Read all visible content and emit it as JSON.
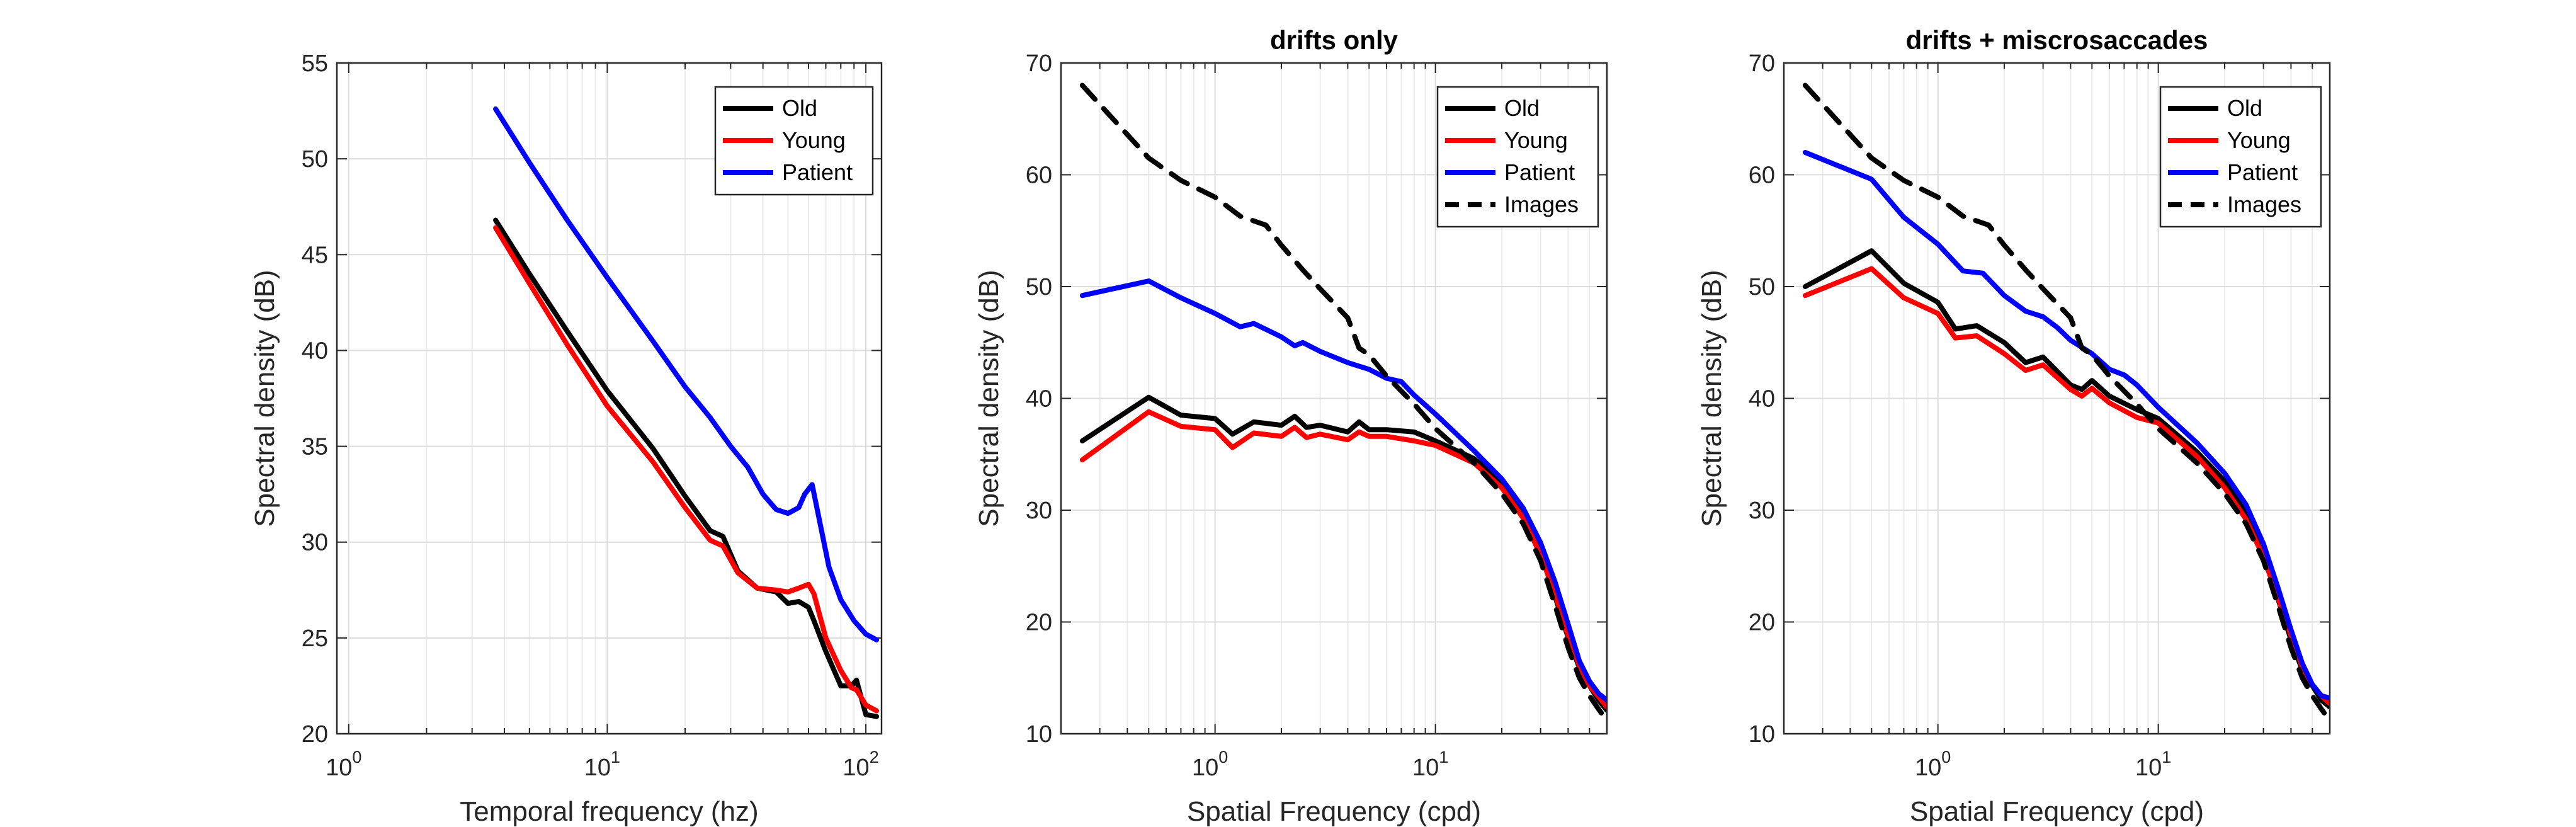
{
  "chart_data": [
    {
      "type": "line",
      "title": "",
      "xlabel": "Temporal frequency (hz)",
      "ylabel": "Spectral density (dB)",
      "xscale": "log",
      "xlim": [
        0.9,
        115
      ],
      "ylim": [
        20,
        55
      ],
      "yticks": [
        20,
        25,
        30,
        35,
        40,
        45,
        50,
        55
      ],
      "xticks": [
        {
          "value": 1,
          "base": "10",
          "exp": "0"
        },
        {
          "value": 10,
          "base": "10",
          "exp": "1"
        },
        {
          "value": 100,
          "base": "10",
          "exp": "2"
        }
      ],
      "grid": true,
      "legend_position": "top-right",
      "series": [
        {
          "name": "Old",
          "color": "#000000",
          "dash": false,
          "x": [
            3.7,
            5,
            7,
            10,
            15,
            20,
            25,
            28,
            32,
            38,
            45,
            50,
            55,
            60,
            63,
            70,
            80,
            88,
            92,
            100,
            110
          ],
          "y": [
            46.8,
            44.0,
            41.0,
            37.9,
            34.9,
            32.4,
            30.6,
            30.3,
            28.5,
            27.6,
            27.4,
            26.8,
            26.9,
            26.6,
            25.9,
            24.3,
            22.5,
            22.5,
            22.8,
            21.0,
            20.9
          ]
        },
        {
          "name": "Young",
          "color": "#ff0000",
          "dash": false,
          "x": [
            3.7,
            5,
            7,
            10,
            15,
            20,
            25,
            28,
            32,
            38,
            45,
            50,
            55,
            60,
            63,
            70,
            80,
            88,
            92,
            100,
            110
          ],
          "y": [
            46.4,
            43.5,
            40.3,
            37.1,
            34.2,
            31.8,
            30.1,
            29.8,
            28.4,
            27.6,
            27.5,
            27.4,
            27.6,
            27.8,
            27.3,
            25.0,
            23.3,
            22.4,
            22.3,
            21.5,
            21.2
          ]
        },
        {
          "name": "Patient",
          "color": "#0000ff",
          "dash": false,
          "x": [
            3.7,
            5,
            7,
            10,
            15,
            20,
            25,
            30,
            35,
            40,
            45,
            50,
            55,
            58,
            62,
            66,
            72,
            80,
            90,
            100,
            110
          ],
          "y": [
            52.6,
            49.8,
            46.8,
            43.8,
            40.5,
            38.1,
            36.5,
            35.0,
            33.9,
            32.5,
            31.7,
            31.5,
            31.8,
            32.5,
            33.0,
            31.2,
            28.7,
            27.0,
            25.9,
            25.2,
            24.9
          ]
        }
      ]
    },
    {
      "type": "line",
      "title": "drifts only",
      "xlabel": "Spatial Frequency (cpd)",
      "ylabel": "Spectral density (dB)",
      "xscale": "log",
      "xlim": [
        0.2,
        60
      ],
      "ylim": [
        10,
        70
      ],
      "yticks": [
        10,
        20,
        30,
        40,
        50,
        60,
        70
      ],
      "xticks": [
        {
          "value": 1,
          "base": "10",
          "exp": "0"
        },
        {
          "value": 10,
          "base": "10",
          "exp": "1"
        }
      ],
      "grid": true,
      "legend_position": "top-right",
      "series": [
        {
          "name": "Old",
          "color": "#000000",
          "dash": false,
          "x": [
            0.25,
            0.5,
            0.7,
            1.0,
            1.2,
            1.5,
            2.0,
            2.3,
            2.6,
            3.0,
            4.0,
            4.5,
            5.0,
            6.0,
            8.0,
            10,
            15,
            20,
            25,
            30,
            35,
            40,
            45,
            50,
            55,
            60
          ],
          "y": [
            36.2,
            40.1,
            38.5,
            38.2,
            36.8,
            37.9,
            37.6,
            38.4,
            37.4,
            37.6,
            37.0,
            37.9,
            37.2,
            37.2,
            37.0,
            36.2,
            34.6,
            32.5,
            29.8,
            26.3,
            22.2,
            18.6,
            15.9,
            14.3,
            13.0,
            12.1
          ]
        },
        {
          "name": "Young",
          "color": "#ff0000",
          "dash": false,
          "x": [
            0.25,
            0.5,
            0.7,
            1.0,
            1.2,
            1.5,
            2.0,
            2.3,
            2.6,
            3.0,
            4.0,
            4.5,
            5.0,
            6.0,
            8.0,
            10,
            15,
            20,
            25,
            30,
            35,
            40,
            45,
            50,
            55,
            60
          ],
          "y": [
            34.5,
            38.8,
            37.5,
            37.2,
            35.6,
            36.9,
            36.6,
            37.4,
            36.5,
            36.8,
            36.3,
            37.0,
            36.6,
            36.6,
            36.2,
            35.8,
            34.2,
            32.0,
            29.3,
            26.0,
            22.4,
            18.8,
            16.1,
            14.3,
            13.3,
            12.4
          ]
        },
        {
          "name": "Patient",
          "color": "#0000ff",
          "dash": false,
          "x": [
            0.25,
            0.5,
            0.7,
            1.0,
            1.3,
            1.5,
            2.0,
            2.3,
            2.5,
            3.0,
            4.0,
            5.0,
            6.0,
            7.0,
            8.0,
            10,
            15,
            20,
            25,
            30,
            35,
            40,
            45,
            50,
            55,
            60
          ],
          "y": [
            49.2,
            50.5,
            49.0,
            47.6,
            46.4,
            46.7,
            45.5,
            44.7,
            45.0,
            44.2,
            43.2,
            42.6,
            41.8,
            41.5,
            40.3,
            38.6,
            35.3,
            32.8,
            30.2,
            27.1,
            23.5,
            19.8,
            16.5,
            14.7,
            13.6,
            13.0
          ]
        },
        {
          "name": "Images",
          "color": "#000000",
          "dash": true,
          "x": [
            0.25,
            0.5,
            0.7,
            1.0,
            1.3,
            1.7,
            2.0,
            2.5,
            3.0,
            4.0,
            4.5,
            5.0,
            6.0,
            8.0,
            10,
            15,
            20,
            25,
            30,
            35,
            40,
            45,
            50,
            55,
            60
          ],
          "y": [
            68.0,
            61.5,
            59.5,
            58.0,
            56.3,
            55.5,
            53.7,
            51.5,
            49.8,
            47.2,
            44.5,
            43.9,
            42.0,
            39.5,
            37.3,
            34.2,
            31.5,
            28.8,
            25.5,
            21.4,
            17.7,
            15.0,
            13.4,
            12.2,
            11.2
          ]
        }
      ]
    },
    {
      "type": "line",
      "title": "drifts + miscrosaccades",
      "xlabel": "Spatial Frequency (cpd)",
      "ylabel": "Spectral density (dB)",
      "xscale": "log",
      "xlim": [
        0.2,
        60
      ],
      "ylim": [
        10,
        70
      ],
      "yticks": [
        10,
        20,
        30,
        40,
        50,
        60,
        70
      ],
      "xticks": [
        {
          "value": 1,
          "base": "10",
          "exp": "0"
        },
        {
          "value": 10,
          "base": "10",
          "exp": "1"
        }
      ],
      "grid": true,
      "legend_position": "top-right",
      "series": [
        {
          "name": "Old",
          "color": "#000000",
          "dash": false,
          "x": [
            0.25,
            0.5,
            0.7,
            1.0,
            1.2,
            1.5,
            2.0,
            2.5,
            3.0,
            4.0,
            4.5,
            5.0,
            6.0,
            8.0,
            10,
            15,
            20,
            25,
            30,
            35,
            40,
            45,
            50,
            55,
            60
          ],
          "y": [
            50.0,
            53.2,
            50.3,
            48.6,
            46.2,
            46.5,
            45.0,
            43.2,
            43.7,
            41.2,
            40.8,
            41.6,
            40.2,
            39.0,
            38.2,
            35.2,
            32.6,
            29.7,
            26.1,
            22.0,
            18.4,
            15.7,
            14.3,
            13.0,
            12.4
          ]
        },
        {
          "name": "Young",
          "color": "#ff0000",
          "dash": false,
          "x": [
            0.25,
            0.5,
            0.7,
            1.0,
            1.2,
            1.5,
            2.0,
            2.5,
            3.0,
            4.0,
            4.5,
            5.0,
            6.0,
            8.0,
            10,
            15,
            20,
            25,
            30,
            35,
            40,
            45,
            50,
            55,
            60
          ],
          "y": [
            49.2,
            51.6,
            49.0,
            47.6,
            45.4,
            45.6,
            44.0,
            42.5,
            43.0,
            40.8,
            40.2,
            40.9,
            39.6,
            38.3,
            37.8,
            34.8,
            32.0,
            29.2,
            25.8,
            22.1,
            18.8,
            16.0,
            14.4,
            13.4,
            12.7
          ]
        },
        {
          "name": "Patient",
          "color": "#0000ff",
          "dash": false,
          "x": [
            0.25,
            0.5,
            0.7,
            1.0,
            1.3,
            1.6,
            2.0,
            2.5,
            3.0,
            3.5,
            4.0,
            5.0,
            6.0,
            7.0,
            8.0,
            10,
            15,
            20,
            25,
            30,
            35,
            40,
            45,
            50,
            55,
            60
          ],
          "y": [
            62.0,
            59.6,
            56.2,
            53.8,
            51.4,
            51.2,
            49.2,
            47.8,
            47.3,
            46.3,
            45.2,
            44.0,
            42.6,
            42.1,
            41.2,
            39.2,
            36.0,
            33.3,
            30.5,
            27.0,
            23.0,
            19.3,
            16.3,
            14.4,
            13.4,
            13.2
          ]
        },
        {
          "name": "Images",
          "color": "#000000",
          "dash": true,
          "x": [
            0.25,
            0.5,
            0.7,
            1.0,
            1.3,
            1.7,
            2.0,
            2.5,
            3.0,
            4.0,
            4.5,
            5.0,
            6.0,
            8.0,
            10,
            15,
            20,
            25,
            30,
            35,
            40,
            45,
            50,
            55,
            60
          ],
          "y": [
            68.0,
            61.5,
            59.5,
            58.0,
            56.3,
            55.5,
            53.7,
            51.5,
            49.8,
            47.2,
            44.5,
            43.9,
            42.0,
            39.5,
            37.3,
            34.2,
            31.5,
            28.8,
            25.5,
            21.4,
            17.7,
            15.0,
            13.4,
            12.2,
            11.2
          ]
        }
      ]
    }
  ]
}
